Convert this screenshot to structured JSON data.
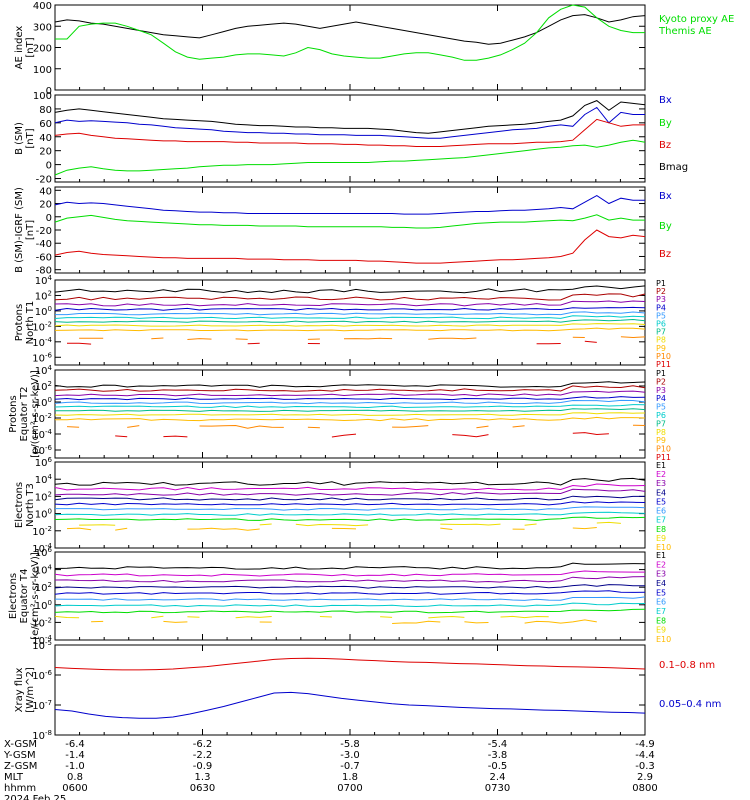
{
  "colors": {
    "black": "#000000",
    "red": "#dd0000",
    "green": "#00dd00",
    "blue": "#0000cc",
    "purple": "#8800aa",
    "magenta": "#cc00cc",
    "orange": "#ff8800",
    "yellow": "#eedd00",
    "cyan": "#00cccc",
    "lightblue": "#3399ff",
    "teal": "#00bb88",
    "gold": "#ffbb00",
    "darkred": "#aa0000",
    "navy": "#000088"
  },
  "chart_data": [
    {
      "type": "line",
      "ylabel": [
        "AE index",
        "[nT]"
      ],
      "ylim": [
        0,
        400
      ],
      "yticks": [
        "400",
        "300",
        "200",
        "100",
        "0"
      ],
      "x_range": [
        "0600",
        "0800"
      ],
      "series": [
        {
          "name": "Themis AE",
          "color": "black",
          "values": [
            320,
            330,
            325,
            315,
            310,
            300,
            290,
            280,
            270,
            260,
            255,
            250,
            245,
            260,
            275,
            290,
            300,
            305,
            310,
            315,
            310,
            300,
            290,
            300,
            310,
            320,
            310,
            300,
            290,
            280,
            270,
            260,
            250,
            240,
            230,
            225,
            215,
            220,
            235,
            250,
            270,
            300,
            330,
            350,
            355,
            340,
            320,
            330,
            345,
            350
          ]
        },
        {
          "name": "Kyoto proxy AE",
          "color": "green",
          "values": [
            240,
            240,
            300,
            310,
            315,
            315,
            300,
            280,
            260,
            220,
            180,
            155,
            145,
            150,
            155,
            165,
            170,
            170,
            165,
            160,
            175,
            200,
            190,
            170,
            160,
            155,
            150,
            150,
            160,
            170,
            175,
            175,
            165,
            155,
            140,
            140,
            150,
            165,
            190,
            220,
            270,
            340,
            380,
            410,
            390,
            340,
            300,
            280,
            270,
            270
          ]
        }
      ],
      "legend": [
        "Kyoto proxy AE",
        "Themis AE"
      ]
    },
    {
      "type": "line",
      "ylabel": [
        "B (SM)",
        "[nT]"
      ],
      "ylim": [
        -25,
        100
      ],
      "yticks": [
        "100",
        "80",
        "60",
        "40",
        "20",
        "0",
        "-20"
      ],
      "series": [
        {
          "name": "Bmag",
          "color": "black",
          "values": [
            75,
            78,
            80,
            78,
            76,
            74,
            72,
            70,
            68,
            66,
            65,
            64,
            63,
            62,
            60,
            58,
            57,
            56,
            56,
            55,
            54,
            54,
            53,
            53,
            52,
            52,
            52,
            51,
            50,
            48,
            46,
            45,
            47,
            49,
            51,
            53,
            55,
            56,
            57,
            58,
            60,
            62,
            64,
            70,
            85,
            92,
            78,
            90,
            88,
            86
          ]
        },
        {
          "name": "Bx",
          "color": "blue",
          "values": [
            60,
            64,
            62,
            63,
            62,
            61,
            60,
            58,
            57,
            55,
            53,
            52,
            51,
            50,
            48,
            47,
            46,
            46,
            45,
            45,
            44,
            44,
            43,
            43,
            43,
            42,
            42,
            42,
            41,
            40,
            39,
            38,
            38,
            40,
            42,
            44,
            46,
            48,
            50,
            51,
            52,
            55,
            57,
            55,
            72,
            82,
            60,
            75,
            72,
            72
          ]
        },
        {
          "name": "Bz",
          "color": "red",
          "values": [
            42,
            44,
            45,
            42,
            40,
            38,
            37,
            36,
            35,
            34,
            34,
            33,
            33,
            33,
            33,
            32,
            32,
            31,
            31,
            31,
            31,
            30,
            30,
            30,
            29,
            29,
            28,
            28,
            27,
            27,
            26,
            26,
            26,
            27,
            28,
            29,
            30,
            30,
            30,
            31,
            32,
            32,
            33,
            35,
            50,
            65,
            60,
            55,
            57,
            57
          ]
        },
        {
          "name": "By",
          "color": "green",
          "values": [
            -15,
            -8,
            -5,
            -3,
            -6,
            -8,
            -9,
            -9,
            -8,
            -7,
            -6,
            -5,
            -3,
            -2,
            -1,
            -1,
            0,
            0,
            0,
            1,
            2,
            3,
            3,
            3,
            3,
            3,
            3,
            4,
            5,
            5,
            6,
            7,
            8,
            9,
            10,
            12,
            14,
            16,
            18,
            20,
            22,
            24,
            25,
            27,
            28,
            25,
            28,
            32,
            35,
            32
          ]
        }
      ],
      "legend": [
        "Bx",
        "By",
        "Bz",
        "Bmag"
      ]
    },
    {
      "type": "line",
      "ylabel": [
        "B (SM)-IGRF (SM)",
        "[nT]"
      ],
      "ylim": [
        -85,
        45
      ],
      "yticks": [
        "40",
        "20",
        "0",
        "-20",
        "-40",
        "-60",
        "-80"
      ],
      "series": [
        {
          "name": "Bx",
          "color": "blue",
          "values": [
            18,
            22,
            20,
            21,
            20,
            18,
            16,
            14,
            12,
            10,
            9,
            8,
            7,
            7,
            6,
            6,
            5,
            5,
            5,
            5,
            5,
            5,
            5,
            5,
            5,
            5,
            5,
            5,
            5,
            4,
            4,
            4,
            5,
            6,
            7,
            8,
            8,
            9,
            10,
            10,
            11,
            12,
            14,
            12,
            22,
            32,
            20,
            28,
            25,
            25
          ]
        },
        {
          "name": "By",
          "color": "green",
          "values": [
            -8,
            -2,
            0,
            2,
            -1,
            -4,
            -6,
            -7,
            -8,
            -9,
            -10,
            -11,
            -12,
            -12,
            -13,
            -13,
            -13,
            -14,
            -14,
            -14,
            -14,
            -15,
            -15,
            -15,
            -15,
            -15,
            -15,
            -15,
            -16,
            -16,
            -17,
            -17,
            -16,
            -14,
            -12,
            -10,
            -9,
            -8,
            -8,
            -8,
            -7,
            -6,
            -5,
            -6,
            -2,
            3,
            -5,
            -2,
            -5,
            -5
          ]
        },
        {
          "name": "Bz",
          "color": "red",
          "values": [
            -58,
            -54,
            -52,
            -55,
            -57,
            -58,
            -59,
            -60,
            -61,
            -62,
            -62,
            -63,
            -63,
            -63,
            -63,
            -63,
            -64,
            -64,
            -64,
            -65,
            -65,
            -65,
            -66,
            -66,
            -66,
            -66,
            -67,
            -67,
            -68,
            -69,
            -70,
            -70,
            -70,
            -69,
            -68,
            -67,
            -66,
            -65,
            -65,
            -64,
            -63,
            -62,
            -60,
            -55,
            -35,
            -20,
            -30,
            -32,
            -28,
            -30
          ]
        }
      ],
      "legend": [
        "Bx",
        "By",
        "Bz"
      ]
    },
    {
      "type": "line",
      "ylabel": [
        "Protons",
        "North T1"
      ],
      "log": true,
      "ylim_exp": [
        -7,
        4
      ],
      "yticks": [
        "10^4",
        "10^2",
        "10^0",
        "10^-2",
        "10^-4",
        "10^-6"
      ],
      "series_levels": [
        2.6,
        1.6,
        0.8,
        0.2,
        -0.4,
        -0.9,
        -1.4,
        -1.9,
        -2.5,
        -3.6,
        -4.2
      ],
      "series_wiggle": [
        0.5,
        0.4,
        0.3,
        0.25,
        0.2,
        0.2,
        0.18,
        0.15,
        0.15,
        0.2,
        0.2
      ],
      "series_colors": [
        "black",
        "darkred",
        "purple",
        "blue",
        "lightblue",
        "cyan",
        "teal",
        "yellow",
        "gold",
        "orange",
        "red"
      ],
      "legend": [
        "P1",
        "P2",
        "P3",
        "P4",
        "P5",
        "P6",
        "P7",
        "P8",
        "P9",
        "P10",
        "P11"
      ]
    },
    {
      "type": "line",
      "ylabel": [
        "Protons",
        "Equator T2",
        "[p/(cm²-s-sr-keV)]"
      ],
      "log": true,
      "ylim_exp": [
        -7,
        4
      ],
      "yticks": [
        "10^4",
        "10^2",
        "10^0",
        "10^-2",
        "10^-4",
        "10^-6"
      ],
      "series_levels": [
        2.0,
        1.5,
        0.9,
        0.4,
        -0.1,
        -0.6,
        -1.1,
        -1.6,
        -2.2,
        -3.1,
        -4.2
      ],
      "series_wiggle": [
        0.3,
        0.3,
        0.25,
        0.2,
        0.2,
        0.2,
        0.15,
        0.15,
        0.25,
        0.35,
        0.4
      ],
      "series_colors": [
        "black",
        "darkred",
        "purple",
        "blue",
        "lightblue",
        "cyan",
        "teal",
        "yellow",
        "gold",
        "orange",
        "red"
      ],
      "legend": [
        "P1",
        "P2",
        "P3",
        "P4",
        "P5",
        "P6",
        "P7",
        "P8",
        "P9",
        "P10",
        "P11"
      ]
    },
    {
      "type": "line",
      "ylabel": [
        "Electrons",
        "North T3"
      ],
      "log": true,
      "ylim_exp": [
        -4,
        6
      ],
      "yticks": [
        "10^6",
        "10^4",
        "10^2",
        "10^0",
        "10^-2",
        "10^-4"
      ],
      "series_levels": [
        3.5,
        2.9,
        2.3,
        1.7,
        1.1,
        0.5,
        -0.1,
        -0.7,
        -1.3,
        -1.8
      ],
      "series_wiggle": [
        0.4,
        0.3,
        0.3,
        0.25,
        0.2,
        0.2,
        0.2,
        0.2,
        0.2,
        0.3
      ],
      "series_colors": [
        "black",
        "magenta",
        "purple",
        "navy",
        "blue",
        "lightblue",
        "cyan",
        "green",
        "yellow",
        "gold"
      ],
      "legend": [
        "E1",
        "E2",
        "E3",
        "E4",
        "E5",
        "E6",
        "E7",
        "E8",
        "E9",
        "E10"
      ]
    },
    {
      "type": "line",
      "ylabel": [
        "Electrons",
        "Equator T4",
        "[e/(cm²-s-sr-keV)]"
      ],
      "log": true,
      "ylim_exp": [
        -4,
        6
      ],
      "yticks": [
        "10^6",
        "10^4",
        "10^2",
        "10^0",
        "10^-2",
        "10^-4"
      ],
      "series_levels": [
        4.2,
        3.4,
        2.7,
        2.0,
        1.3,
        0.6,
        -0.1,
        -0.8,
        -1.4,
        -2.0
      ],
      "series_wiggle": [
        0.3,
        0.25,
        0.25,
        0.2,
        0.2,
        0.2,
        0.2,
        0.2,
        0.2,
        0.3
      ],
      "series_colors": [
        "black",
        "magenta",
        "purple",
        "navy",
        "blue",
        "lightblue",
        "cyan",
        "green",
        "yellow",
        "gold"
      ],
      "legend": [
        "E1",
        "E2",
        "E3",
        "E4",
        "E5",
        "E6",
        "E7",
        "E8",
        "E9",
        "E10"
      ]
    },
    {
      "type": "line",
      "ylabel": [
        "Xray flux",
        "[W/m^2]"
      ],
      "log": true,
      "ylim_exp": [
        -8,
        -5
      ],
      "yticks": [
        "10^-5",
        "10^-6",
        "10^-7",
        "10^-8"
      ],
      "series": [
        {
          "name": "0.1–0.8 nm",
          "color": "red",
          "values": [
            -5.75,
            -5.78,
            -5.8,
            -5.82,
            -5.83,
            -5.83,
            -5.82,
            -5.8,
            -5.76,
            -5.72,
            -5.66,
            -5.6,
            -5.54,
            -5.48,
            -5.45,
            -5.44,
            -5.45,
            -5.47,
            -5.5,
            -5.52,
            -5.55,
            -5.57,
            -5.58,
            -5.6,
            -5.62,
            -5.63,
            -5.65,
            -5.67,
            -5.69,
            -5.7,
            -5.72,
            -5.73,
            -5.74,
            -5.76,
            -5.78,
            -5.8
          ]
        },
        {
          "name": "0.05–0.4 nm",
          "color": "blue",
          "values": [
            -7.15,
            -7.2,
            -7.3,
            -7.38,
            -7.42,
            -7.44,
            -7.44,
            -7.4,
            -7.3,
            -7.18,
            -7.05,
            -6.9,
            -6.75,
            -6.6,
            -6.58,
            -6.62,
            -6.7,
            -6.78,
            -6.84,
            -6.9,
            -6.96,
            -7.0,
            -7.02,
            -7.05,
            -7.08,
            -7.1,
            -7.12,
            -7.13,
            -7.15,
            -7.17,
            -7.18,
            -7.2,
            -7.22,
            -7.24,
            -7.25,
            -7.27
          ]
        }
      ],
      "legend": [
        "0.1–0.8 nm",
        "0.05–0.4 nm"
      ]
    }
  ],
  "ephemeris": {
    "rows": [
      {
        "label": "X-GSM",
        "values": [
          "-6.4",
          "-6.2",
          "-5.8",
          "-5.4",
          "-4.9"
        ]
      },
      {
        "label": "Y-GSM",
        "values": [
          "-1.4",
          "-2.2",
          "-3.0",
          "-3.8",
          "-4.4"
        ]
      },
      {
        "label": "Z-GSM",
        "values": [
          "-1.0",
          "-0.9",
          "-0.7",
          "-0.5",
          "-0.3"
        ]
      },
      {
        "label": "MLT",
        "values": [
          "0.8",
          "1.3",
          "1.8",
          "2.4",
          "2.9"
        ]
      },
      {
        "label": "hhmm",
        "values": [
          "0600",
          "0630",
          "0700",
          "0730",
          "0800"
        ]
      }
    ],
    "date": "2024 Feb 25"
  }
}
